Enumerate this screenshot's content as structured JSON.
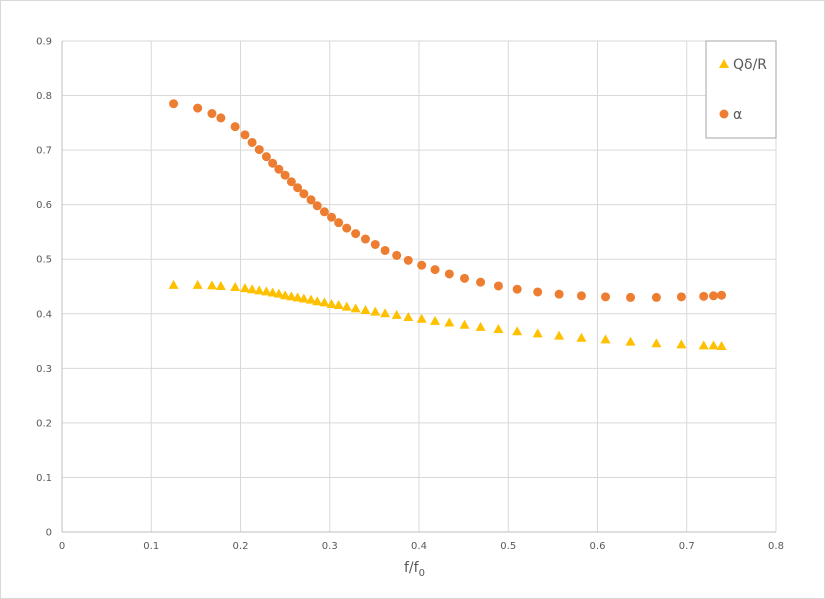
{
  "chart_data": {
    "type": "scatter",
    "title": "",
    "xlabel": "f/f",
    "xlabel_sub": "0",
    "ylabel": "",
    "xlim": [
      0,
      0.8
    ],
    "ylim": [
      0,
      0.9
    ],
    "x_ticks": [
      "0",
      "0.1",
      "0.2",
      "0.3",
      "0.4",
      "0.5",
      "0.6",
      "0.7",
      "0.8"
    ],
    "y_ticks": [
      "0",
      "0.1",
      "0.2",
      "0.3",
      "0.4",
      "0.5",
      "0.6",
      "0.7",
      "0.8",
      "0.9"
    ],
    "grid": true,
    "legend_position": "top-right",
    "series": [
      {
        "name": "Qδ/R",
        "marker": "triangle",
        "color": "#FFC000",
        "x": [
          0.125,
          0.152,
          0.168,
          0.178,
          0.194,
          0.205,
          0.213,
          0.221,
          0.229,
          0.236,
          0.243,
          0.25,
          0.257,
          0.264,
          0.271,
          0.279,
          0.286,
          0.294,
          0.302,
          0.31,
          0.319,
          0.329,
          0.34,
          0.351,
          0.362,
          0.375,
          0.388,
          0.403,
          0.418,
          0.434,
          0.451,
          0.469,
          0.489,
          0.51,
          0.533,
          0.557,
          0.582,
          0.609,
          0.637,
          0.666,
          0.694,
          0.719,
          0.73,
          0.739
        ],
        "y": [
          0.453,
          0.453,
          0.452,
          0.451,
          0.449,
          0.447,
          0.445,
          0.443,
          0.441,
          0.439,
          0.437,
          0.434,
          0.432,
          0.43,
          0.428,
          0.426,
          0.423,
          0.421,
          0.418,
          0.416,
          0.413,
          0.41,
          0.407,
          0.404,
          0.401,
          0.398,
          0.394,
          0.391,
          0.387,
          0.384,
          0.38,
          0.376,
          0.372,
          0.368,
          0.364,
          0.36,
          0.356,
          0.353,
          0.349,
          0.346,
          0.344,
          0.342,
          0.342,
          0.341
        ]
      },
      {
        "name": "α",
        "marker": "circle",
        "color": "#ED7D31",
        "x": [
          0.125,
          0.152,
          0.168,
          0.178,
          0.194,
          0.205,
          0.213,
          0.221,
          0.229,
          0.236,
          0.243,
          0.25,
          0.257,
          0.264,
          0.271,
          0.279,
          0.286,
          0.294,
          0.302,
          0.31,
          0.319,
          0.329,
          0.34,
          0.351,
          0.362,
          0.375,
          0.388,
          0.403,
          0.418,
          0.434,
          0.451,
          0.469,
          0.489,
          0.51,
          0.533,
          0.557,
          0.582,
          0.609,
          0.637,
          0.666,
          0.694,
          0.719,
          0.73,
          0.739
        ],
        "y": [
          0.785,
          0.777,
          0.767,
          0.759,
          0.743,
          0.728,
          0.714,
          0.701,
          0.688,
          0.676,
          0.665,
          0.654,
          0.642,
          0.631,
          0.62,
          0.609,
          0.598,
          0.587,
          0.577,
          0.567,
          0.557,
          0.547,
          0.537,
          0.527,
          0.516,
          0.507,
          0.498,
          0.489,
          0.481,
          0.473,
          0.465,
          0.458,
          0.451,
          0.445,
          0.44,
          0.436,
          0.433,
          0.431,
          0.43,
          0.43,
          0.431,
          0.432,
          0.433,
          0.434
        ]
      }
    ]
  }
}
